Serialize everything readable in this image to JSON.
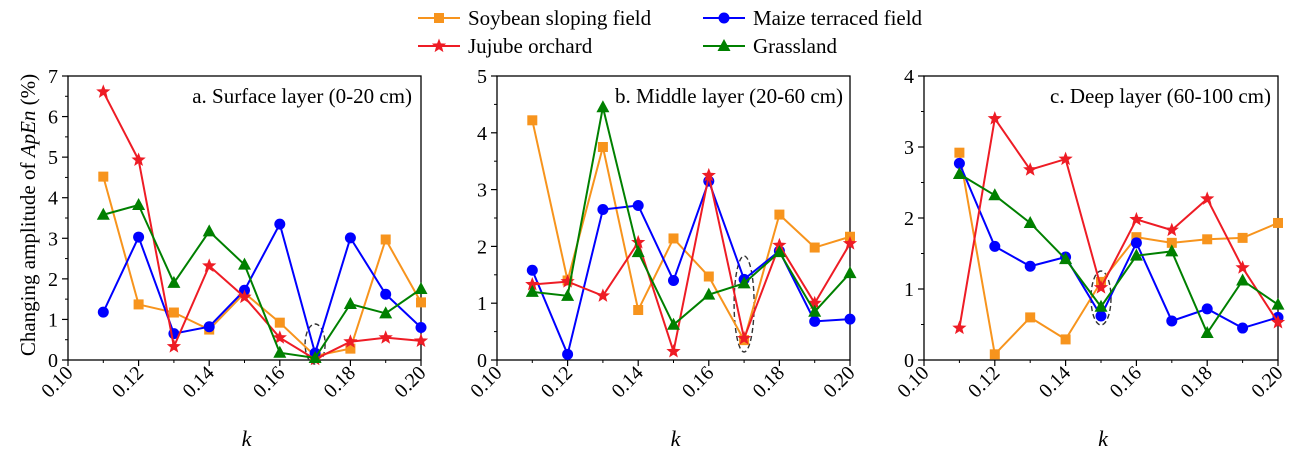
{
  "figure": {
    "ylabel_prefix": "Changing amplitude of ",
    "ylabel_italic": "ApEn",
    "ylabel_suffix": " (%)",
    "xlabel": "k"
  },
  "legend": [
    {
      "name": "Soybean sloping field",
      "color": "#F7941D",
      "marker": "square"
    },
    {
      "name": "Maize terraced field",
      "color": "#0000FF",
      "marker": "circle"
    },
    {
      "name": "Jujube orchard",
      "color": "#EE1C25",
      "marker": "star"
    },
    {
      "name": "Grassland",
      "color": "#008000",
      "marker": "triangle"
    }
  ],
  "chart_data": [
    {
      "type": "line",
      "title": "a. Surface layer (0-20 cm)",
      "xlabel": "k",
      "ylabel": "Changing amplitude of ApEn (%)",
      "xlim": [
        0.1,
        0.2
      ],
      "ylim": [
        0,
        7
      ],
      "xticks": [
        "0.10",
        "0.12",
        "0.14",
        "0.16",
        "0.18",
        "0.20"
      ],
      "yticks": [
        "0",
        "1",
        "2",
        "3",
        "4",
        "5",
        "6",
        "7"
      ],
      "x": [
        0.11,
        0.12,
        0.13,
        0.14,
        0.15,
        0.16,
        0.17,
        0.18,
        0.19,
        0.2
      ],
      "highlight": {
        "x": 0.17,
        "shape": "dashed-ellipse"
      },
      "series": [
        {
          "name": "Soybean sloping field",
          "values": [
            4.52,
            1.37,
            1.17,
            0.75,
            1.65,
            0.92,
            0.1,
            0.28,
            2.97,
            1.42
          ]
        },
        {
          "name": "Maize terraced field",
          "values": [
            1.18,
            3.03,
            0.65,
            0.82,
            1.72,
            3.35,
            0.17,
            3.01,
            1.62,
            0.8
          ]
        },
        {
          "name": "Jujube orchard",
          "values": [
            6.61,
            4.93,
            0.33,
            2.32,
            1.55,
            0.55,
            0.02,
            0.45,
            0.55,
            0.47
          ]
        },
        {
          "name": "Grassland",
          "values": [
            3.58,
            3.82,
            1.9,
            3.17,
            2.35,
            0.18,
            0.05,
            1.38,
            1.15,
            1.75
          ]
        }
      ]
    },
    {
      "type": "line",
      "title": "b. Middle layer (20-60 cm)",
      "xlabel": "k",
      "xlim": [
        0.1,
        0.2
      ],
      "ylim": [
        0,
        5
      ],
      "xticks": [
        "0.10",
        "0.12",
        "0.14",
        "0.16",
        "0.18",
        "0.20"
      ],
      "yticks": [
        "0",
        "1",
        "2",
        "3",
        "4",
        "5"
      ],
      "x": [
        0.11,
        0.12,
        0.13,
        0.14,
        0.15,
        0.16,
        0.17,
        0.18,
        0.19,
        0.2
      ],
      "highlight": {
        "x": 0.17,
        "shape": "dashed-ellipse"
      },
      "series": [
        {
          "name": "Soybean sloping field",
          "values": [
            4.22,
            1.4,
            3.75,
            0.88,
            2.14,
            1.47,
            0.35,
            2.56,
            1.98,
            2.17
          ]
        },
        {
          "name": "Maize terraced field",
          "values": [
            1.58,
            0.1,
            2.65,
            2.72,
            1.4,
            3.15,
            1.42,
            1.92,
            0.68,
            0.72
          ]
        },
        {
          "name": "Jujube orchard",
          "values": [
            1.33,
            1.38,
            1.13,
            2.07,
            0.15,
            3.25,
            0.38,
            2.02,
            1.0,
            2.05
          ]
        },
        {
          "name": "Grassland",
          "values": [
            1.2,
            1.13,
            4.45,
            1.9,
            0.62,
            1.15,
            1.35,
            1.9,
            0.85,
            1.53
          ]
        }
      ]
    },
    {
      "type": "line",
      "title": "c. Deep layer (60-100 cm)",
      "xlabel": "k",
      "xlim": [
        0.1,
        0.2
      ],
      "ylim": [
        0,
        4
      ],
      "xticks": [
        "0.10",
        "0.12",
        "0.14",
        "0.16",
        "0.18",
        "0.20"
      ],
      "yticks": [
        "0",
        "1",
        "2",
        "3",
        "4"
      ],
      "x": [
        0.11,
        0.12,
        0.13,
        0.14,
        0.15,
        0.16,
        0.17,
        0.18,
        0.19,
        0.2
      ],
      "highlight": {
        "x": 0.15,
        "shape": "dashed-ellipse"
      },
      "series": [
        {
          "name": "Soybean sloping field",
          "values": [
            2.92,
            0.08,
            0.6,
            0.29,
            1.1,
            1.73,
            1.65,
            1.7,
            1.72,
            1.93
          ]
        },
        {
          "name": "Maize terraced field",
          "values": [
            2.77,
            1.6,
            1.32,
            1.45,
            0.62,
            1.65,
            0.55,
            0.72,
            0.45,
            0.6
          ]
        },
        {
          "name": "Jujube orchard",
          "values": [
            0.45,
            3.4,
            2.68,
            2.83,
            1.02,
            1.98,
            1.83,
            2.27,
            1.3,
            0.53
          ]
        },
        {
          "name": "Grassland",
          "values": [
            2.62,
            2.32,
            1.93,
            1.42,
            0.75,
            1.47,
            1.53,
            0.38,
            1.12,
            0.78
          ]
        }
      ]
    }
  ]
}
